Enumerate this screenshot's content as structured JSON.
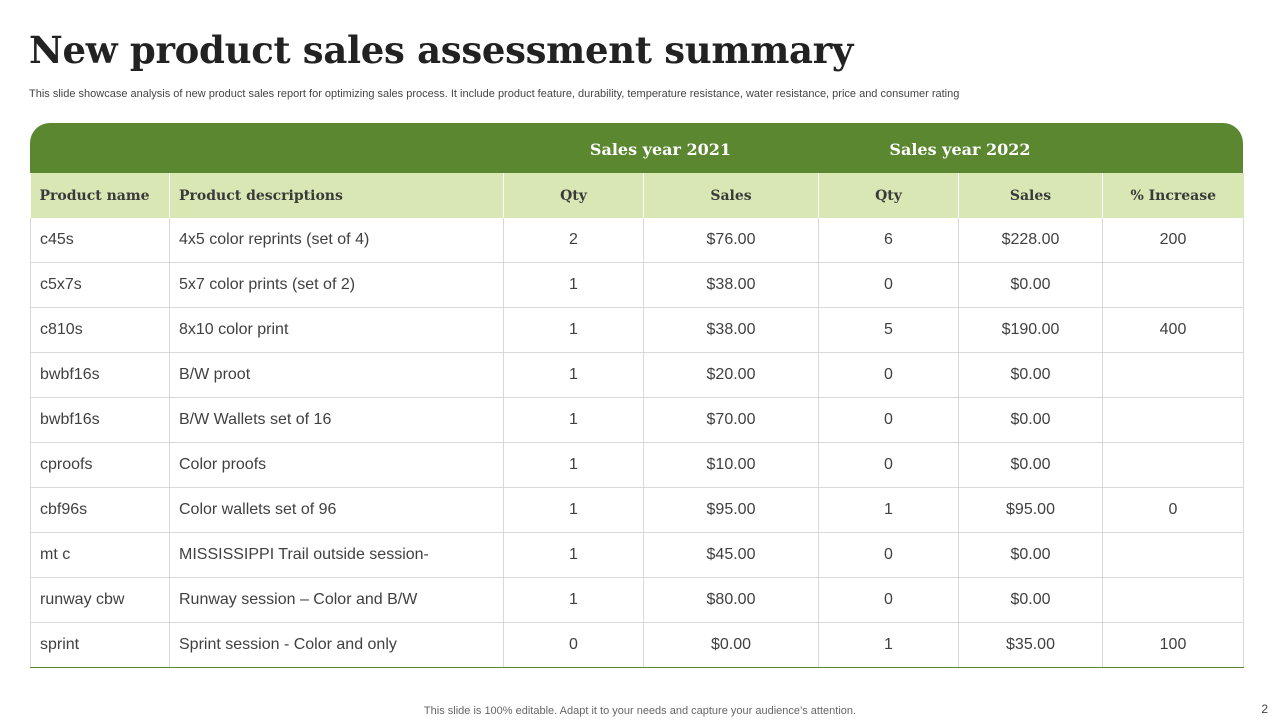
{
  "slide": {
    "title": "New product sales assessment summary",
    "subtitle": "This slide showcase analysis of new product sales report  for optimizing sales process. It include product feature, durability, temperature resistance, water resistance, price and consumer rating",
    "footer": "This slide is 100% editable. Adapt it to your needs and capture your audience’s attention.",
    "page_number": "2"
  },
  "colors": {
    "header_green": "#5b8731",
    "subheader_light_green": "#d8e7b3",
    "grid_line": "#d9d9d9"
  },
  "table": {
    "group_headers": [
      "Sales year 2021",
      "Sales year 2022"
    ],
    "columns": [
      "Product name",
      "Product descriptions",
      "Qty",
      "Sales",
      "Qty",
      "Sales",
      "% Increase"
    ],
    "rows": [
      [
        "c45s",
        "4x5 color reprints (set of 4)",
        "2",
        "$76.00",
        "6",
        "$228.00",
        "200"
      ],
      [
        "c5x7s",
        "5x7 color prints (set of 2)",
        "1",
        "$38.00",
        "0",
        "$0.00",
        ""
      ],
      [
        "c810s",
        "8x10 color print",
        "1",
        "$38.00",
        "5",
        "$190.00",
        "400"
      ],
      [
        "bwbf16s",
        "B/W proot",
        "1",
        "$20.00",
        "0",
        "$0.00",
        ""
      ],
      [
        "bwbf16s",
        "B/W Wallets set of 16",
        "1",
        "$70.00",
        "0",
        "$0.00",
        ""
      ],
      [
        "cproofs",
        "Color proofs",
        "1",
        "$10.00",
        "0",
        "$0.00",
        ""
      ],
      [
        "cbf96s",
        "Color wallets set of 96",
        "1",
        "$95.00",
        "1",
        "$95.00",
        "0"
      ],
      [
        "mt c",
        "MISSISSIPPI  Trail outside session-",
        "1",
        "$45.00",
        "0",
        "$0.00",
        ""
      ],
      [
        "runway  cbw",
        "Runway  session – Color and B/W",
        "1",
        "$80.00",
        "0",
        "$0.00",
        ""
      ],
      [
        "sprint",
        "Sprint session - Color  and only",
        "0",
        "$0.00",
        "1",
        "$35.00",
        "100"
      ]
    ]
  }
}
